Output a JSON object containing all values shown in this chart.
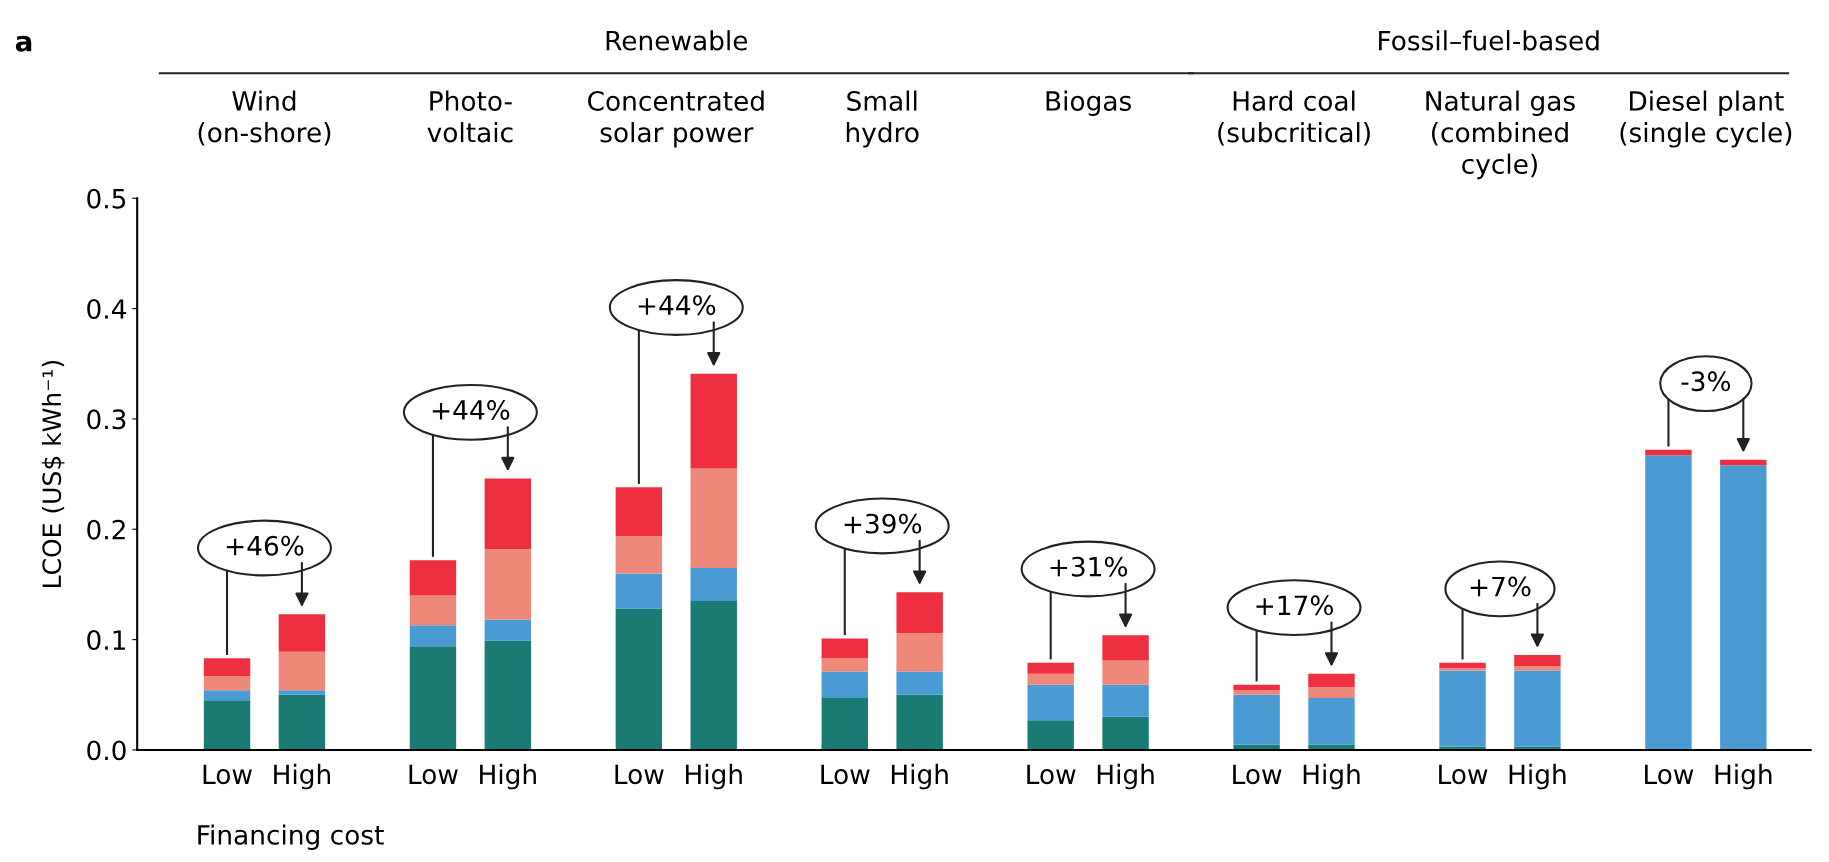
{
  "chart_data": {
    "type": "bar",
    "stacked": true,
    "ylabel": "LCOE (US$ kWh⁻¹)",
    "xlabel": "Financing cost",
    "categories": [
      "Low",
      "High",
      "Low",
      "High",
      "Low",
      "High",
      "Low",
      "High",
      "Low",
      "High",
      "Low",
      "High",
      "Low",
      "High",
      "Low",
      "High"
    ],
    "series": [
      {
        "color": "#1a7a74",
        "values": [
          0.045,
          0.05,
          0.094,
          0.099,
          0.128,
          0.135,
          0.047,
          0.05,
          0.027,
          0.03,
          0.005,
          0.005,
          0.003,
          0.003,
          0,
          0
        ]
      },
      {
        "color": "#4a9bd4",
        "values": [
          0.009,
          0.004,
          0.019,
          0.019,
          0.032,
          0.03,
          0.024,
          0.021,
          0.032,
          0.029,
          0.045,
          0.042,
          0.069,
          0.069,
          0.267,
          0.258
        ]
      },
      {
        "color": "#ee8878",
        "values": [
          0.013,
          0.035,
          0.027,
          0.064,
          0.034,
          0.09,
          0.012,
          0.035,
          0.01,
          0.022,
          0.004,
          0.01,
          0.002,
          0.004,
          0,
          0
        ]
      },
      {
        "color": "#ee2f3f",
        "values": [
          0.016,
          0.034,
          0.032,
          0.064,
          0.044,
          0.086,
          0.018,
          0.037,
          0.01,
          0.023,
          0.005,
          0.012,
          0.005,
          0.01,
          0.005,
          0.005
        ]
      }
    ],
    "ylim": [
      0,
      0.5
    ],
    "yticks": [
      {
        "value": 0,
        "label": "0.0"
      },
      0.1,
      0.2,
      0.3,
      0.4,
      0.5
    ],
    "grid": false,
    "legend": false,
    "annotations": [
      "a",
      "Renewable",
      "Fossil–fuel-based",
      "Wind\n(on-shore)",
      "Photo-\nvoltaic",
      "Concentrated\nsolar power",
      "Small\nhydro",
      "Biogas",
      "Hard coal\n(subcritical)",
      "Natural gas\n(combined\ncycle)",
      "Diesel plant\n(single cycle)",
      "+46%",
      "+44%",
      "+44%",
      "+39%",
      "+31%",
      "+17%",
      "+7%",
      "-3%"
    ]
  }
}
